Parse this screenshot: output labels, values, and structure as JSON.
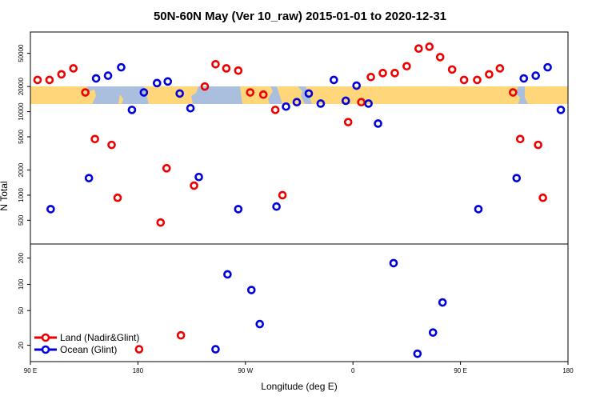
{
  "chart_data": {
    "type": "scatter",
    "title": "50N-60N May (Ver 10_raw)   2015-01-01 to 2020-12-31",
    "xlabel": "Longitude (deg E)",
    "ylabel": "N Total",
    "x_ticks": [
      {
        "value": 90,
        "label": "90 E"
      },
      {
        "value": 180,
        "label": "180"
      },
      {
        "value": 270,
        "label": "90 W"
      },
      {
        "value": 360,
        "label": "0"
      },
      {
        "value": 450,
        "label": "90 E"
      },
      {
        "value": 540,
        "label": "180"
      }
    ],
    "xlim": [
      90,
      540
    ],
    "top_panel": {
      "yscale": "log",
      "ylim": [
        260,
        90000
      ],
      "y_ticks": [
        500,
        1000,
        2000,
        5000,
        10000,
        20000,
        50000
      ],
      "land": [
        {
          "x": 96,
          "y": 24000
        },
        {
          "x": 106,
          "y": 24000
        },
        {
          "x": 116,
          "y": 28000
        },
        {
          "x": 126,
          "y": 33000
        },
        {
          "x": 136,
          "y": 17000
        },
        {
          "x": 144,
          "y": 4700
        },
        {
          "x": 158,
          "y": 4000
        },
        {
          "x": 163,
          "y": 930
        },
        {
          "x": 199,
          "y": 470
        },
        {
          "x": 204,
          "y": 2100
        },
        {
          "x": 227,
          "y": 1300
        },
        {
          "x": 236,
          "y": 20000
        },
        {
          "x": 245,
          "y": 37000
        },
        {
          "x": 254,
          "y": 33000
        },
        {
          "x": 264,
          "y": 31000
        },
        {
          "x": 274,
          "y": 17000
        },
        {
          "x": 285,
          "y": 16000
        },
        {
          "x": 295,
          "y": 10500
        },
        {
          "x": 301,
          "y": 1000
        },
        {
          "x": 356,
          "y": 7500
        },
        {
          "x": 367,
          "y": 13000
        },
        {
          "x": 375,
          "y": 26000
        },
        {
          "x": 385,
          "y": 29000
        },
        {
          "x": 395,
          "y": 29000
        },
        {
          "x": 405,
          "y": 35000
        },
        {
          "x": 415,
          "y": 57000
        },
        {
          "x": 424,
          "y": 60000
        },
        {
          "x": 433,
          "y": 45000
        },
        {
          "x": 443,
          "y": 32000
        },
        {
          "x": 453,
          "y": 24000
        },
        {
          "x": 464,
          "y": 24000
        },
        {
          "x": 474,
          "y": 28000
        },
        {
          "x": 483,
          "y": 33000
        },
        {
          "x": 494,
          "y": 17000
        },
        {
          "x": 500,
          "y": 4700
        },
        {
          "x": 515,
          "y": 4000
        },
        {
          "x": 519,
          "y": 930
        }
      ],
      "ocean": [
        {
          "x": 107,
          "y": 680
        },
        {
          "x": 139,
          "y": 1600
        },
        {
          "x": 145,
          "y": 25000
        },
        {
          "x": 155,
          "y": 27000
        },
        {
          "x": 166,
          "y": 34000
        },
        {
          "x": 175,
          "y": 10500
        },
        {
          "x": 185,
          "y": 17000
        },
        {
          "x": 196,
          "y": 22000
        },
        {
          "x": 205,
          "y": 23000
        },
        {
          "x": 215,
          "y": 16500
        },
        {
          "x": 224,
          "y": 11000
        },
        {
          "x": 231,
          "y": 1650
        },
        {
          "x": 264,
          "y": 680
        },
        {
          "x": 296,
          "y": 730
        },
        {
          "x": 304,
          "y": 11500
        },
        {
          "x": 313,
          "y": 13000
        },
        {
          "x": 323,
          "y": 16500
        },
        {
          "x": 333,
          "y": 12500
        },
        {
          "x": 344,
          "y": 24000
        },
        {
          "x": 354,
          "y": 13500
        },
        {
          "x": 363,
          "y": 20500
        },
        {
          "x": 373,
          "y": 12500
        },
        {
          "x": 381,
          "y": 7200
        },
        {
          "x": 465,
          "y": 680
        },
        {
          "x": 497,
          "y": 1600
        },
        {
          "x": 503,
          "y": 25000
        },
        {
          "x": 513,
          "y": 27000
        },
        {
          "x": 523,
          "y": 34000
        },
        {
          "x": 534,
          "y": 10500
        }
      ]
    },
    "bottom_panel": {
      "yscale": "log",
      "ylim": [
        13,
        290
      ],
      "y_ticks": [
        20,
        50,
        100,
        200
      ],
      "land": [
        {
          "x": 181,
          "y": 18
        },
        {
          "x": 216,
          "y": 26
        }
      ],
      "ocean": [
        {
          "x": 245,
          "y": 18
        },
        {
          "x": 255,
          "y": 130
        },
        {
          "x": 275,
          "y": 86
        },
        {
          "x": 282,
          "y": 35
        },
        {
          "x": 394,
          "y": 175
        },
        {
          "x": 414,
          "y": 16
        },
        {
          "x": 427,
          "y": 28
        },
        {
          "x": 435,
          "y": 62
        }
      ]
    },
    "legend": {
      "position": "bottom-left",
      "entries": [
        {
          "label": "Land (Nadir&Glint)",
          "color": "#ee0000"
        },
        {
          "label": "Ocean (Glint)",
          "color": "#0000dd"
        }
      ]
    },
    "map_band": {
      "land_color": "#ffd77a",
      "ocean_color": "#a9bfdd"
    }
  }
}
